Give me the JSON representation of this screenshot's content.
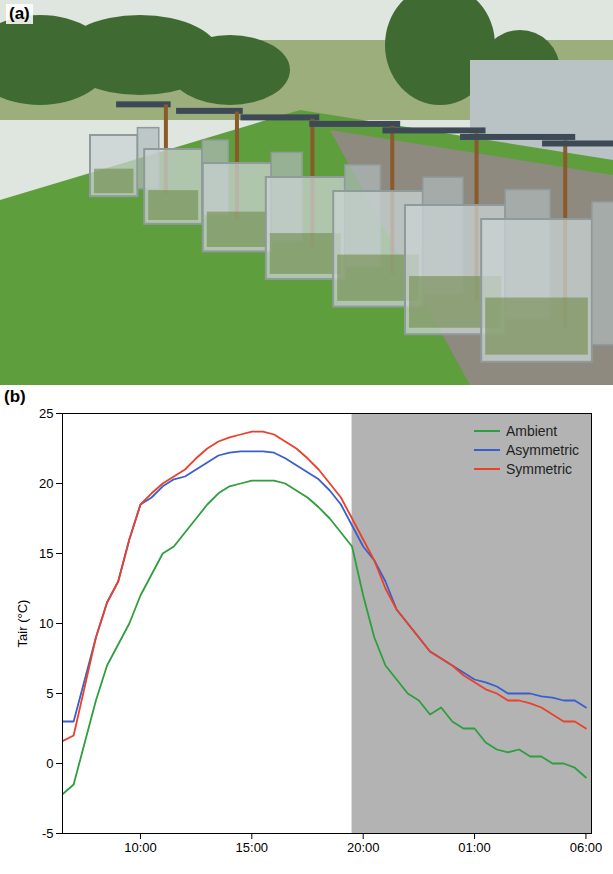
{
  "chart_data": {
    "type": "line",
    "annotations": [
      "(a)",
      "(b)"
    ],
    "ylabel": "Tair (°C)",
    "x": [
      6.5,
      7,
      7.5,
      8,
      8.5,
      9,
      9.5,
      10,
      10.5,
      11,
      11.5,
      12,
      12.5,
      13,
      13.5,
      14,
      14.5,
      15,
      15.5,
      16,
      16.5,
      17,
      17.5,
      18,
      18.5,
      19,
      19.5,
      20,
      20.5,
      21,
      21.5,
      22,
      22.5,
      23,
      23.5,
      24,
      24.5,
      25,
      25.5,
      26,
      26.5,
      27,
      27.5,
      28,
      28.5,
      29,
      29.5,
      30
    ],
    "series": [
      {
        "name": "Ambient",
        "color": "#2e9e3e",
        "values": [
          -2.2,
          -1.5,
          1.5,
          4.5,
          7,
          8.5,
          10,
          12,
          13.5,
          15,
          15.5,
          16.5,
          17.5,
          18.5,
          19.3,
          19.8,
          20,
          20.2,
          20.2,
          20.2,
          20,
          19.5,
          19,
          18.3,
          17.5,
          16.5,
          15.5,
          12,
          9,
          7,
          6,
          5,
          4.5,
          3.5,
          4,
          3,
          2.5,
          2.5,
          1.5,
          1,
          0.8,
          1,
          0.5,
          0.5,
          0,
          0,
          -0.3,
          -1
        ]
      },
      {
        "name": "Asymmetric",
        "color": "#3a5fcd",
        "values": [
          3,
          3,
          6,
          9,
          11.5,
          13,
          16,
          18.5,
          19,
          19.8,
          20.3,
          20.5,
          21,
          21.5,
          22,
          22.2,
          22.3,
          22.3,
          22.3,
          22.2,
          21.8,
          21.3,
          20.8,
          20.3,
          19.5,
          18.5,
          17,
          15.5,
          14.5,
          13,
          11,
          10,
          9,
          8,
          7.5,
          7,
          6.5,
          6,
          5.8,
          5.5,
          5,
          5,
          5,
          4.8,
          4.7,
          4.5,
          4.5,
          4
        ]
      },
      {
        "name": "Symmetric",
        "color": "#e8412c",
        "values": [
          1.6,
          2,
          5.5,
          9,
          11.5,
          13,
          16,
          18.5,
          19.3,
          20,
          20.5,
          21,
          21.8,
          22.5,
          23,
          23.3,
          23.5,
          23.7,
          23.7,
          23.5,
          23,
          22.5,
          21.8,
          21,
          20,
          19,
          17.5,
          16,
          14.5,
          12.5,
          11,
          10,
          9,
          8,
          7.5,
          7,
          6.3,
          5.8,
          5.3,
          5,
          4.5,
          4.5,
          4.3,
          4,
          3.5,
          3,
          3,
          2.5
        ]
      }
    ],
    "shaded_region": [
      19.5,
      30.25
    ],
    "xlim": [
      6.5,
      30.25
    ],
    "xticks": [
      {
        "value": 10,
        "label": "10:00"
      },
      {
        "value": 15,
        "label": "15:00"
      },
      {
        "value": 20,
        "label": "20:00"
      },
      {
        "value": 25,
        "label": "01:00"
      },
      {
        "value": 30,
        "label": "06:00"
      }
    ],
    "ylim": [
      -5,
      25
    ],
    "yticks": [
      -5,
      0,
      5,
      10,
      15,
      20,
      25
    ],
    "legend": "top-right"
  }
}
